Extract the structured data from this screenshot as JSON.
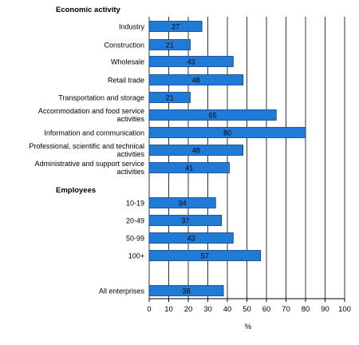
{
  "chart_data": {
    "type": "bar",
    "orientation": "horizontal",
    "xlabel": "%",
    "xlim": [
      0,
      100
    ],
    "xticks": [
      "0",
      "10",
      "20",
      "30",
      "40",
      "50",
      "60",
      "70",
      "80",
      "90",
      "100"
    ],
    "grid": "vertical",
    "bar_color": "#1f7bd6",
    "groups": [
      {
        "heading": "Economic activity",
        "categories": [
          [
            "Industry"
          ],
          [
            "Construction"
          ],
          [
            "Wholesale"
          ],
          [
            "Retail trade"
          ],
          [
            "Transportation and storage"
          ],
          [
            "Accommodation and food service",
            "activities"
          ],
          [
            "Information and communication"
          ],
          [
            "Professional, scientific and technical",
            "activities"
          ],
          [
            "Administrative and support service",
            "activities"
          ]
        ],
        "values": [
          27,
          21,
          43,
          48,
          21,
          65,
          80,
          48,
          41
        ]
      },
      {
        "heading": "Employees",
        "categories": [
          [
            "10-19"
          ],
          [
            "20-49"
          ],
          [
            "50-99"
          ],
          [
            "100+"
          ]
        ],
        "values": [
          34,
          37,
          43,
          57
        ]
      },
      {
        "heading": "",
        "categories": [
          [
            "All enterprises"
          ]
        ],
        "values": [
          38
        ]
      }
    ]
  }
}
